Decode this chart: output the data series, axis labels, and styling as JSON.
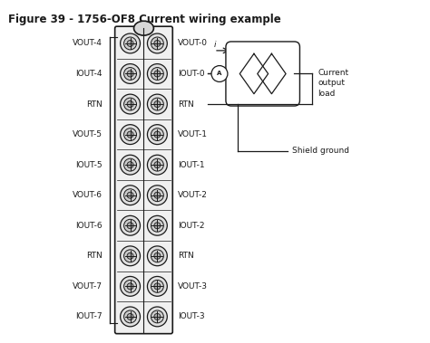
{
  "title": "Figure 39 - 1756-OF8 Current wiring example",
  "title_fontsize": 8.5,
  "title_fontweight": "bold",
  "bg_color": "#ffffff",
  "left_labels": [
    "VOUT-4",
    "IOUT-4",
    "RTN",
    "VOUT-5",
    "IOUT-5",
    "VOUT-6",
    "IOUT-6",
    "RTN",
    "VOUT-7",
    "IOUT-7"
  ],
  "right_labels": [
    "VOUT-0",
    "IOUT-0",
    "RTN",
    "VOUT-1",
    "IOUT-1",
    "VOUT-2",
    "IOUT-2",
    "RTN",
    "VOUT-3",
    "IOUT-3"
  ],
  "row_count": 10,
  "text_color": "#1a1a1a",
  "label_fontsize": 6.5,
  "line_color": "#1a1a1a",
  "shield_ground_text": "Shield ground",
  "current_output_text": "Current\noutput\nload",
  "current_label": "i"
}
